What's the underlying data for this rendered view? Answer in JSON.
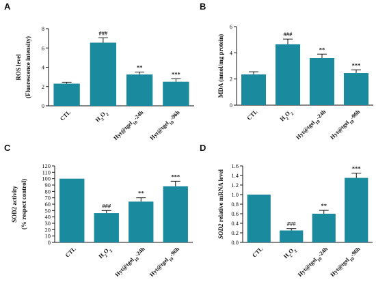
{
  "chart_data": [
    {
      "panel": "A",
      "type": "bar",
      "categories": [
        "CTL",
        "H2O2",
        "Hyt@tgel10-24h",
        "Hyt@tgel10-96h"
      ],
      "values": [
        2.3,
        6.55,
        3.25,
        2.5
      ],
      "errors": [
        0.15,
        0.5,
        0.25,
        0.3
      ],
      "significance": [
        "",
        "###",
        "**",
        "***"
      ],
      "ylabel": [
        "ROS level",
        "(Fluorescence intensity)"
      ],
      "ylim": [
        0,
        8
      ],
      "yticks": [
        0,
        2,
        4,
        6,
        8
      ],
      "color": "#1a8a9e"
    },
    {
      "panel": "B",
      "type": "bar",
      "categories": [
        "CTL",
        "H2O2",
        "Hyt@tgel10-24h",
        "Hyt@tgel10-96h"
      ],
      "values": [
        2.35,
        4.65,
        3.6,
        2.45
      ],
      "errors": [
        0.2,
        0.4,
        0.3,
        0.25
      ],
      "significance": [
        "",
        "###",
        "**",
        "***"
      ],
      "ylabel": [
        "MDA (nmol/mg protein)"
      ],
      "ylim": [
        0,
        6
      ],
      "yticks": [
        0,
        2,
        4,
        6
      ],
      "color": "#1a8a9e"
    },
    {
      "panel": "C",
      "type": "bar",
      "categories": [
        "CTL",
        "H2O2",
        "Hyt@tgel10-24h",
        "Hyt@tgel10-96h"
      ],
      "values": [
        100,
        46,
        64,
        88
      ],
      "errors": [
        0,
        4,
        6,
        8
      ],
      "significance": [
        "",
        "###",
        "**",
        "***"
      ],
      "ylabel": [
        "SOD2 activity",
        "(% respect control)"
      ],
      "ylim": [
        0,
        120
      ],
      "yticks": [
        0,
        10,
        20,
        30,
        40,
        50,
        60,
        70,
        80,
        90,
        100,
        110,
        120
      ],
      "color": "#1a8a9e"
    },
    {
      "panel": "D",
      "type": "bar",
      "categories": [
        "CTL",
        "H2O2",
        "Hyt@tgel10-24h",
        "Hyt@tgel10-96h"
      ],
      "values": [
        1.0,
        0.25,
        0.6,
        1.35
      ],
      "errors": [
        0,
        0.04,
        0.07,
        0.1
      ],
      "significance": [
        "",
        "###",
        "**",
        "***"
      ],
      "ylabel": [
        "SOD2 relative mRNA level"
      ],
      "ylim": [
        0,
        1.6
      ],
      "yticks": [
        0,
        0.2,
        0.4,
        0.6,
        0.8,
        1.0,
        1.2,
        1.4,
        1.6
      ],
      "tick_decimals": 1,
      "color": "#1a8a9e"
    }
  ]
}
